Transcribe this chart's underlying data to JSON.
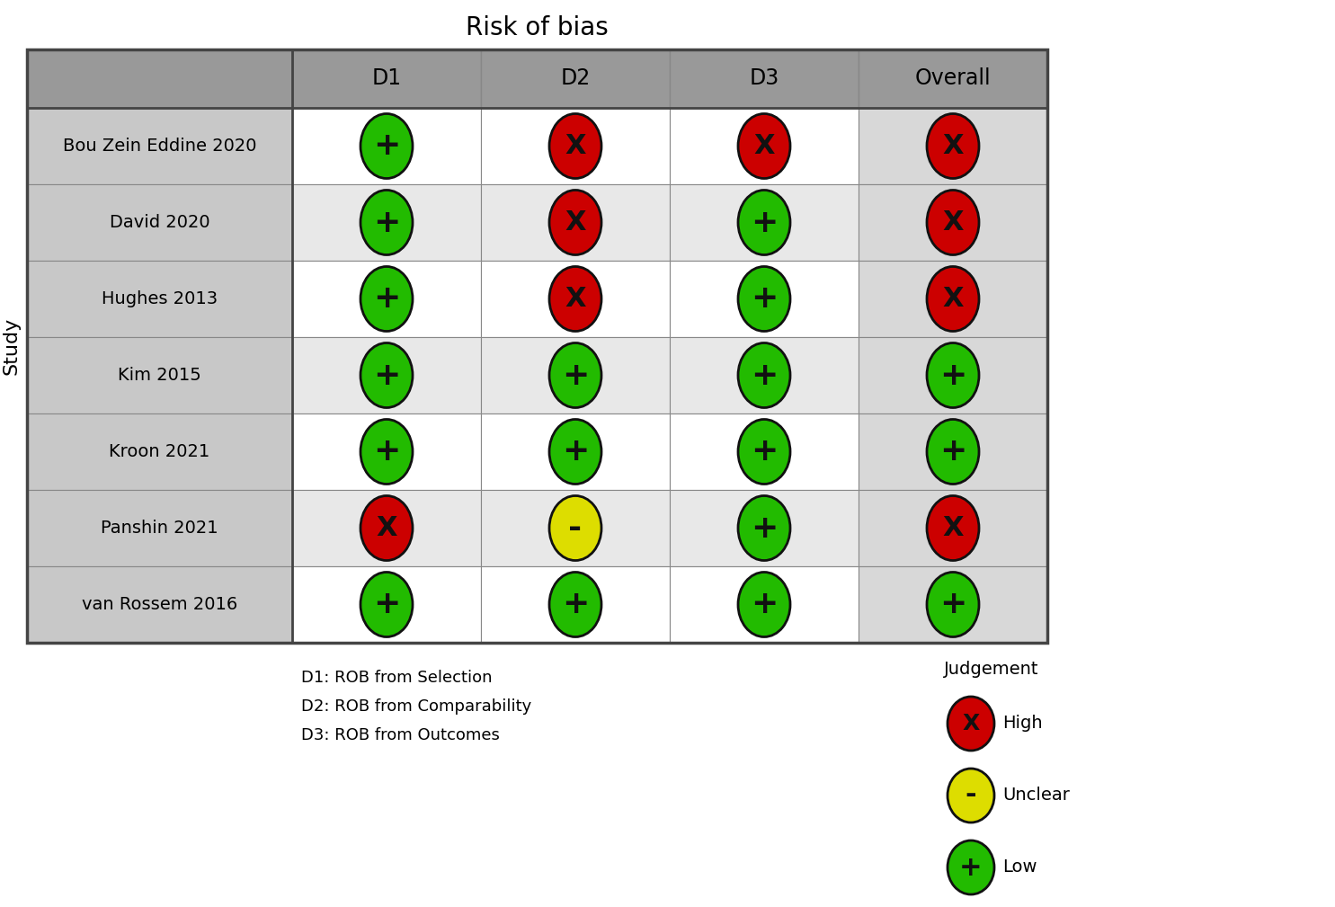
{
  "title": "Risk of bias",
  "ylabel": "Study",
  "columns": [
    "D1",
    "D2",
    "D3",
    "Overall"
  ],
  "studies": [
    "Bou Zein Eddine 2020",
    "David 2020",
    "Hughes 2013",
    "Kim 2015",
    "Kroon 2021",
    "Panshin 2021",
    "van Rossem 2016"
  ],
  "data": [
    [
      "low",
      "high",
      "high",
      "high"
    ],
    [
      "low",
      "high",
      "low",
      "high"
    ],
    [
      "low",
      "high",
      "low",
      "high"
    ],
    [
      "low",
      "low",
      "low",
      "low"
    ],
    [
      "low",
      "low",
      "low",
      "low"
    ],
    [
      "high",
      "unclear",
      "low",
      "high"
    ],
    [
      "low",
      "low",
      "low",
      "low"
    ]
  ],
  "color_map": {
    "low": "#22bb00",
    "high": "#cc0000",
    "unclear": "#dddd00"
  },
  "symbol_map": {
    "low": "+",
    "high": "X",
    "unclear": "-"
  },
  "footnote_lines": [
    "D1: ROB from Selection",
    "D2: ROB from Comparability",
    "D3: ROB from Outcomes"
  ],
  "legend_title": "Judgement",
  "legend_items": [
    {
      "label": "High",
      "color": "#cc0000",
      "symbol": "X"
    },
    {
      "label": "Unclear",
      "color": "#dddd00",
      "symbol": "-"
    },
    {
      "label": "Low",
      "color": "#22bb00",
      "symbol": "+"
    }
  ],
  "row_bg_odd": "#c8c8c8",
  "row_bg_even": "#ffffff",
  "header_bg": "#999999",
  "overall_bg_odd": "#d0d0d0",
  "overall_bg_even": "#f0f0f0"
}
